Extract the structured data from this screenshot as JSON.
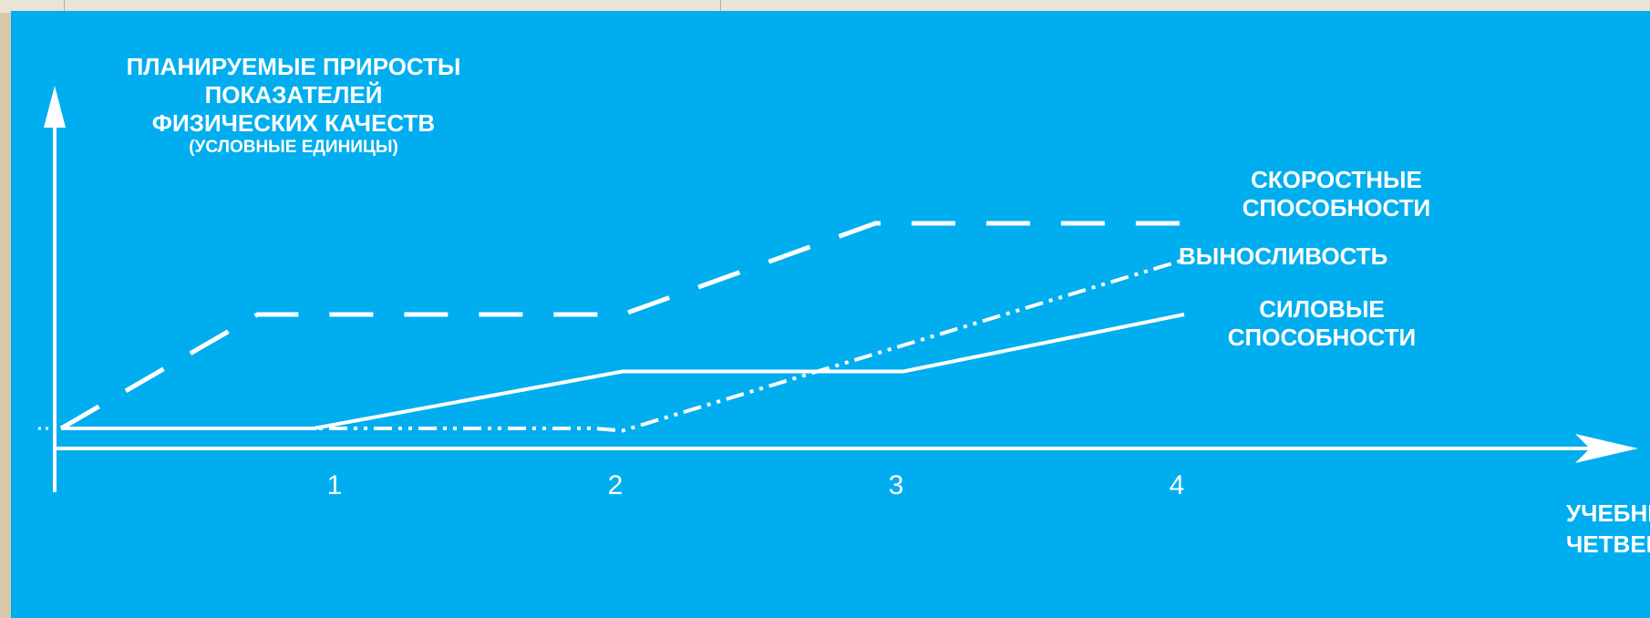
{
  "chart_data": {
    "type": "line",
    "title": [
      "ПЛАНИРУЕМЫЕ ПРИРОСТЫ",
      "ПОКАЗАТЕЛЕЙ",
      "ФИЗИЧЕСКИХ КАЧЕСТВ"
    ],
    "subtitle": "(УСЛОВНЫЕ ЕДИНИЦЫ)",
    "xlabel": [
      "УЧЕБНЫ",
      "ЧЕТВЕР"
    ],
    "x_ticks": [
      "1",
      "2",
      "3",
      "4"
    ],
    "xlim": [
      0,
      4.5
    ],
    "ylim": [
      0,
      10
    ],
    "grid": false,
    "series": [
      {
        "name": [
          "СКОРОСТНЫЕ",
          "СПОСОБНОСТИ"
        ],
        "style": "dashed",
        "points": [
          [
            0,
            0
          ],
          [
            0.7,
            5
          ],
          [
            2.0,
            5
          ],
          [
            2.9,
            9
          ],
          [
            4.0,
            9
          ]
        ]
      },
      {
        "name": [
          "ВЫНОСЛИВОСТЬ"
        ],
        "style": "dash-dot-dot",
        "points": [
          [
            0,
            0
          ],
          [
            1.9,
            0
          ],
          [
            2.0,
            -0.1
          ],
          [
            4.0,
            7.4
          ]
        ]
      },
      {
        "name": [
          "СИЛОВЫЕ",
          "СПОСОБНОСТИ"
        ],
        "style": "solid",
        "points": [
          [
            0,
            0
          ],
          [
            0.9,
            0
          ],
          [
            2.0,
            2.5
          ],
          [
            3.0,
            2.5
          ],
          [
            4.0,
            5
          ]
        ]
      }
    ]
  },
  "colors": {
    "background": "#00aeef",
    "foreground": "#ffffff"
  }
}
